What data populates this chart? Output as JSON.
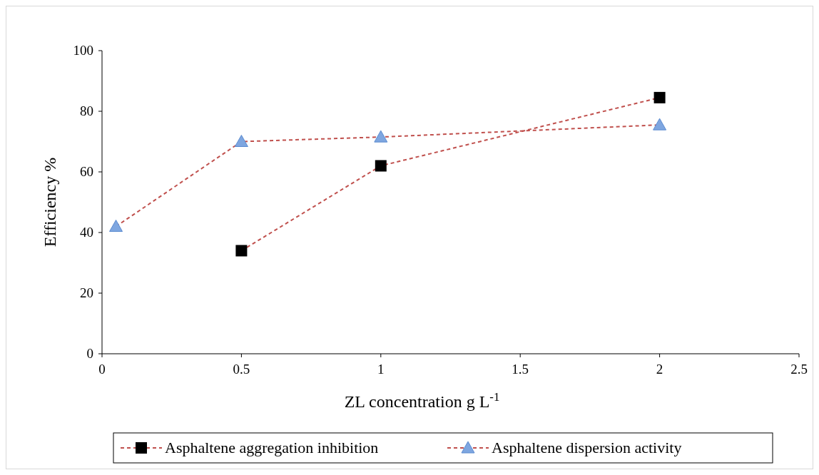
{
  "chart_data": {
    "type": "line",
    "xlabel": "ZL concentration  g L$^{-1}$",
    "ylabel": "Efficiency  %",
    "xlim": [
      0,
      2.5
    ],
    "xticks": [
      0,
      0.5,
      1,
      1.5,
      2,
      2.5
    ],
    "ylim": [
      0,
      100
    ],
    "yticks": [
      0,
      20,
      40,
      60,
      80,
      100
    ],
    "grid": false,
    "legend": "bottom",
    "line_style": "dashed",
    "series": [
      {
        "name": "Asphaltene aggregation inhibition",
        "color": "#c0504d",
        "colors": [
          "#000000",
          "#000000",
          "#000000"
        ],
        "marker": "square",
        "x": [
          0.5,
          1,
          2
        ],
        "values": [
          34,
          62,
          84.5
        ]
      },
      {
        "name": "Asphaltene dispersion activity",
        "color": "#c0504d",
        "colors": [
          "#7ea6e0",
          "#7ea6e0",
          "#7ea6e0",
          "#7ea6e0"
        ],
        "marker": "triangle",
        "x": [
          0.05,
          0.5,
          1,
          2
        ],
        "values": [
          42,
          70,
          71.5,
          75.5
        ]
      }
    ]
  }
}
